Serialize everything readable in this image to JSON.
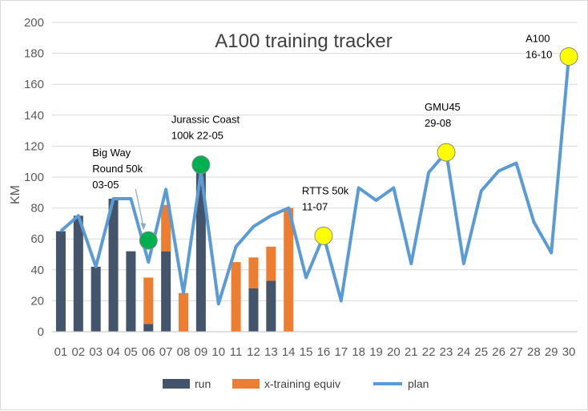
{
  "chart_data": {
    "type": "bar+line",
    "title": "A100 training tracker",
    "ylabel": "KM",
    "xlabel": "",
    "ylim": [
      0,
      200
    ],
    "yticks": [
      0,
      20,
      40,
      60,
      80,
      100,
      120,
      140,
      160,
      180,
      200
    ],
    "grid": "horizontal",
    "categories": [
      "01",
      "02",
      "03",
      "04",
      "05",
      "06",
      "07",
      "08",
      "09",
      "10",
      "11",
      "12",
      "13",
      "14",
      "15",
      "16",
      "17",
      "18",
      "19",
      "20",
      "21",
      "22",
      "23",
      "24",
      "25",
      "26",
      "27",
      "28",
      "29",
      "30"
    ],
    "series": [
      {
        "name": "run",
        "type": "stacked-bar",
        "color": "#44546a",
        "values": [
          65,
          75,
          42,
          86,
          52,
          5,
          52,
          0,
          108,
          0,
          0,
          28,
          33,
          0,
          null,
          null,
          null,
          null,
          null,
          null,
          null,
          null,
          null,
          null,
          null,
          null,
          null,
          null,
          null,
          null
        ]
      },
      {
        "name": "x-training equiv",
        "type": "stacked-bar",
        "color": "#ed7d31",
        "values": [
          0,
          0,
          0,
          0,
          0,
          30,
          30,
          25,
          0,
          0,
          45,
          20,
          22,
          80,
          null,
          null,
          null,
          null,
          null,
          null,
          null,
          null,
          null,
          null,
          null,
          null,
          null,
          null,
          null,
          null
        ]
      },
      {
        "name": "plan",
        "type": "line",
        "color": "#5b9bd5",
        "values": [
          65,
          75,
          42,
          86,
          86,
          45,
          92,
          25,
          103,
          18,
          55,
          68,
          75,
          80,
          35,
          62,
          20,
          93,
          85,
          93,
          44,
          103,
          116,
          44,
          91,
          104,
          109,
          71,
          51,
          178
        ]
      }
    ],
    "markers": [
      {
        "x": "06",
        "y": 59,
        "color": "#00b050",
        "label_lines": [
          "Big Way",
          "Round 50k",
          "03-05"
        ]
      },
      {
        "x": "09",
        "y": 108,
        "color": "#00b050",
        "label_lines": [
          "Jurassic Coast",
          "100k 22-05"
        ]
      },
      {
        "x": "16",
        "y": 62,
        "color": "#ffff00",
        "label_lines": [
          "RTTS 50k",
          "11-07"
        ]
      },
      {
        "x": "23",
        "y": 116,
        "color": "#ffff00",
        "label_lines": [
          "GMU45",
          "29-08"
        ]
      },
      {
        "x": "30",
        "y": 178,
        "color": "#ffff00",
        "label_lines": [
          "A100",
          "16-10"
        ]
      }
    ],
    "legend": {
      "placement": "bottom",
      "entries": [
        "run",
        "x-training equiv",
        "plan"
      ]
    }
  }
}
